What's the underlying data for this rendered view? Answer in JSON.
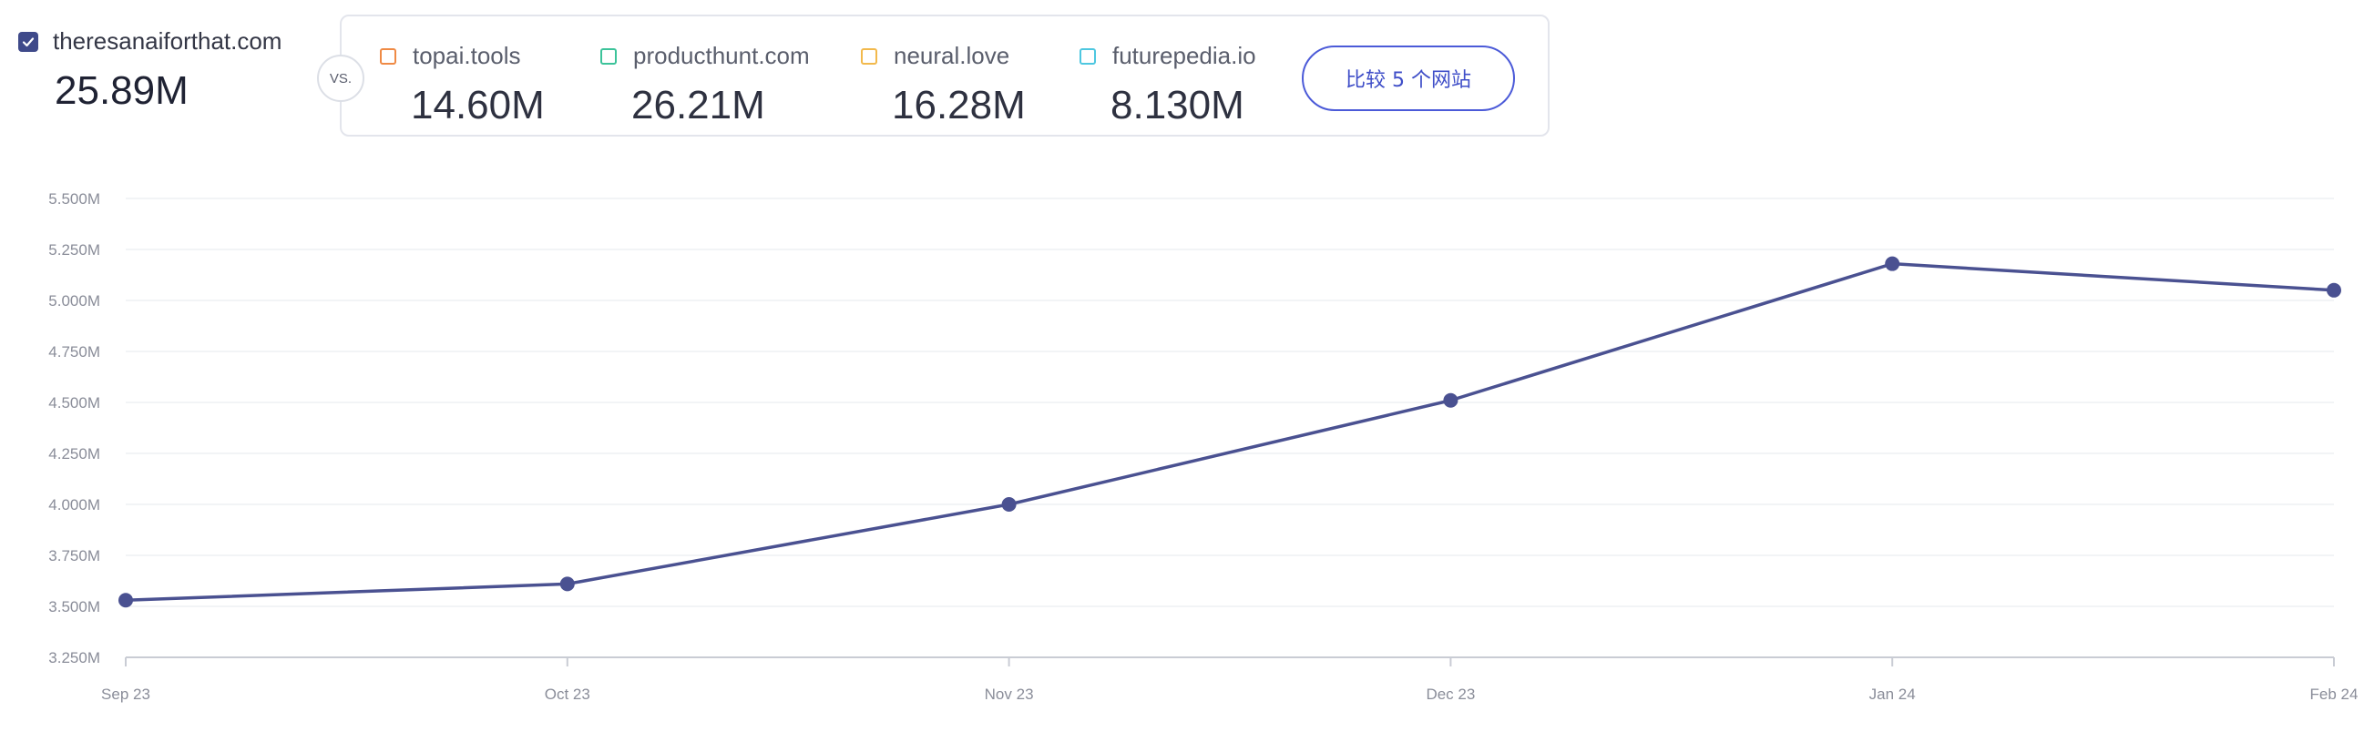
{
  "primary_site": {
    "name": "theresanaiforthat.com",
    "value": "25.89M",
    "checked": true,
    "color": "#3f4a8a"
  },
  "vs_label": "VS.",
  "competitors": [
    {
      "name": "topai.tools",
      "value": "14.60M",
      "color": "#ef8a45"
    },
    {
      "name": "producthunt.com",
      "value": "26.21M",
      "color": "#3cc39a"
    },
    {
      "name": "neural.love",
      "value": "16.28M",
      "color": "#f2b94c"
    },
    {
      "name": "futurepedia.io",
      "value": "8.130M",
      "color": "#4ec7e0"
    }
  ],
  "compare_button": {
    "label": "比较 5 个网站"
  },
  "chart_data": {
    "type": "line",
    "title": "",
    "xlabel": "",
    "ylabel": "",
    "categories": [
      "Sep 23",
      "Oct 23",
      "Nov 23",
      "Dec 23",
      "Jan 24",
      "Feb 24"
    ],
    "series": [
      {
        "name": "theresanaiforthat.com",
        "color": "#4a5191",
        "values": [
          3.53,
          3.61,
          4.0,
          4.51,
          5.18,
          5.05
        ]
      }
    ],
    "yticks": [
      "3.250M",
      "3.500M",
      "3.750M",
      "4.000M",
      "4.250M",
      "4.500M",
      "4.750M",
      "5.000M",
      "5.250M",
      "5.500M"
    ],
    "ytick_values": [
      3.25,
      3.5,
      3.75,
      4.0,
      4.25,
      4.5,
      4.75,
      5.0,
      5.25,
      5.5
    ],
    "ylim": [
      3.25,
      5.5
    ],
    "grid": true,
    "legend": "top-left"
  }
}
